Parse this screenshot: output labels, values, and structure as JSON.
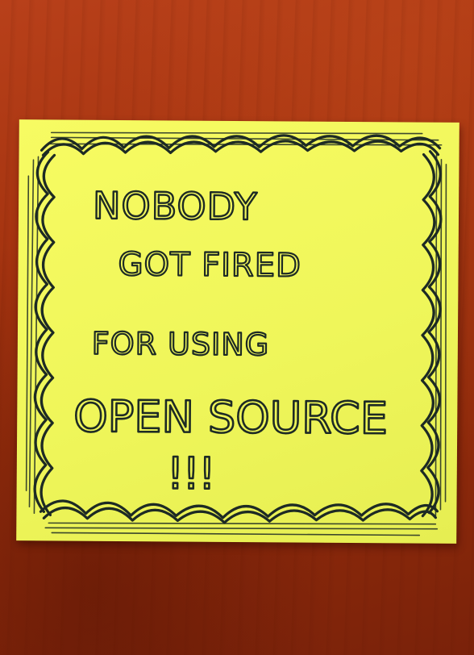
{
  "note": {
    "lines": [
      "NOBODY",
      "GOT FIRED",
      "FOR USING",
      "OPEN SOURCE",
      "!!!"
    ]
  },
  "colors": {
    "wood": "#a4330f",
    "note": "#f1f75c",
    "ink": "#1d2a24"
  }
}
